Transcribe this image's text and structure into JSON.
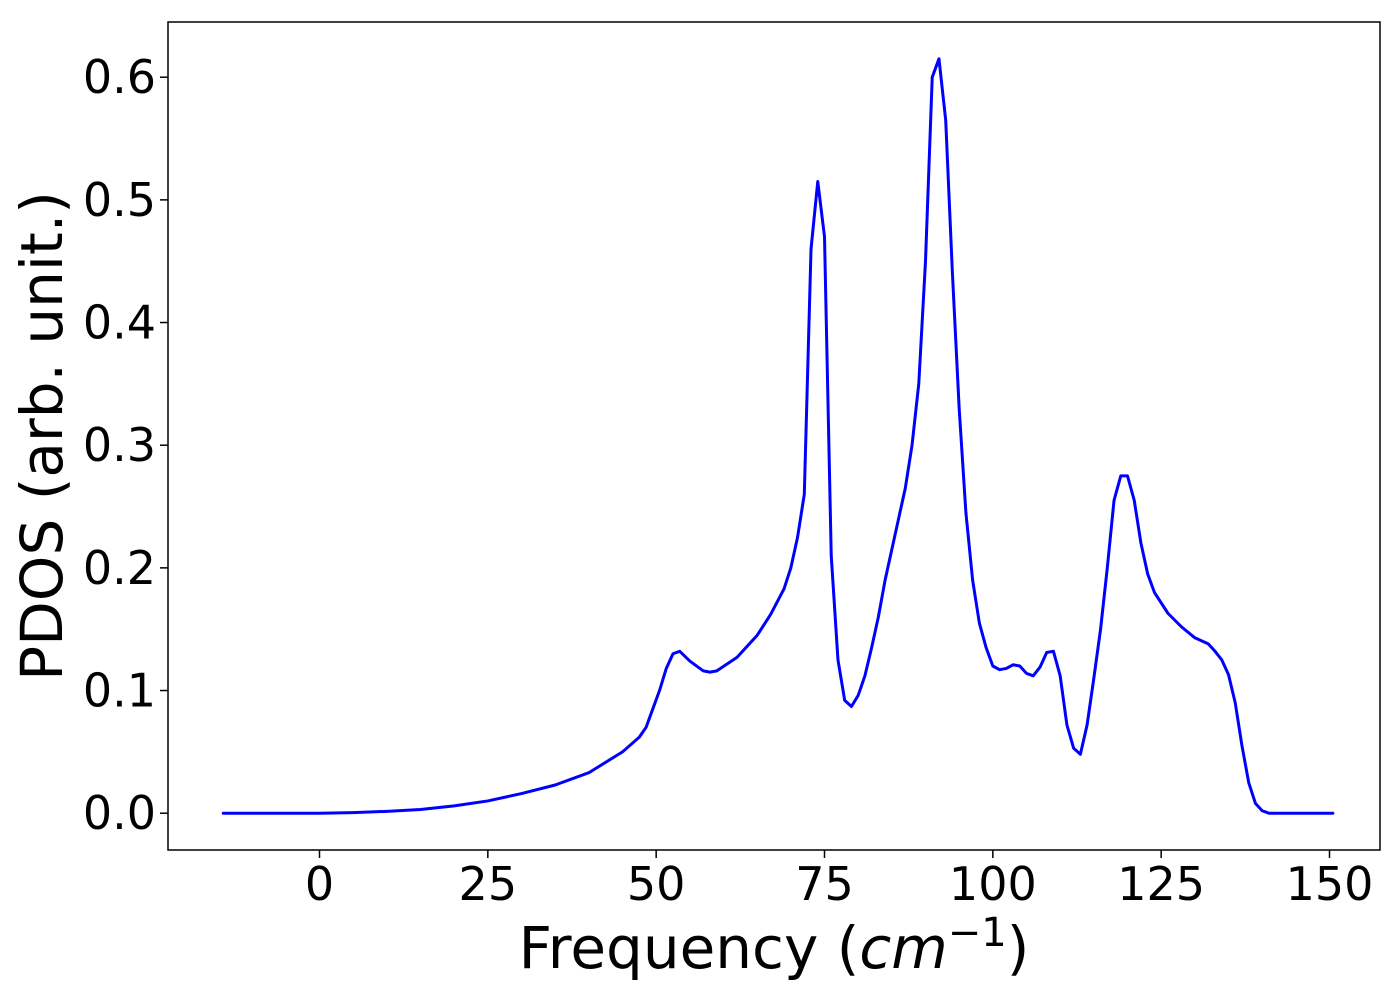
{
  "chart_data": {
    "type": "line",
    "title": "",
    "xlabel": "Frequency (",
    "xlabel_math": "cm",
    "xlabel_exp": "−1",
    "xlabel_close": ")",
    "ylabel": "PDOS (arb. unit.)",
    "xlim": [
      -22.5,
      157.5
    ],
    "ylim": [
      -0.03,
      0.645
    ],
    "xticks": [
      0,
      25,
      50,
      75,
      100,
      125,
      150
    ],
    "yticks": [
      0.0,
      0.1,
      0.2,
      0.3,
      0.4,
      0.5,
      0.6
    ],
    "ytick_labels": [
      "0.0",
      "0.1",
      "0.2",
      "0.3",
      "0.4",
      "0.5",
      "0.6"
    ],
    "grid": false,
    "line_color": "#0000ff",
    "series": [
      {
        "x": [
          -14.3,
          0,
          5,
          10,
          15,
          20,
          25,
          30,
          35,
          40,
          45,
          47.5,
          48.5,
          49.5,
          50.5,
          51.5,
          52.5,
          53.5,
          55,
          57,
          58,
          59,
          62,
          65,
          67,
          69,
          70,
          71,
          72,
          73,
          74,
          75,
          76,
          77,
          78,
          79,
          80,
          81,
          82,
          83,
          84,
          85,
          86,
          87,
          88,
          89,
          90,
          91,
          92,
          93,
          94,
          95,
          96,
          97,
          98,
          99,
          100,
          101,
          102,
          103,
          104,
          105,
          106,
          107,
          108,
          109,
          110,
          111,
          112,
          113,
          114,
          115,
          116,
          117,
          118,
          119,
          120,
          121,
          122,
          123,
          124,
          126,
          128,
          130,
          132,
          133,
          134,
          135,
          136,
          137,
          138,
          139,
          140,
          141,
          145,
          150.5
        ],
        "y": [
          0.0,
          0.0,
          0.0005,
          0.0015,
          0.003,
          0.006,
          0.01,
          0.016,
          0.023,
          0.033,
          0.05,
          0.062,
          0.07,
          0.085,
          0.1,
          0.118,
          0.13,
          0.132,
          0.124,
          0.116,
          0.115,
          0.116,
          0.127,
          0.145,
          0.162,
          0.183,
          0.2,
          0.225,
          0.26,
          0.46,
          0.515,
          0.47,
          0.21,
          0.125,
          0.092,
          0.087,
          0.096,
          0.112,
          0.135,
          0.16,
          0.19,
          0.215,
          0.24,
          0.265,
          0.3,
          0.35,
          0.45,
          0.6,
          0.615,
          0.565,
          0.44,
          0.33,
          0.245,
          0.19,
          0.155,
          0.135,
          0.12,
          0.117,
          0.118,
          0.121,
          0.12,
          0.114,
          0.112,
          0.119,
          0.131,
          0.132,
          0.112,
          0.072,
          0.053,
          0.048,
          0.072,
          0.11,
          0.15,
          0.2,
          0.255,
          0.275,
          0.275,
          0.255,
          0.22,
          0.195,
          0.18,
          0.163,
          0.152,
          0.143,
          0.138,
          0.132,
          0.125,
          0.113,
          0.09,
          0.055,
          0.025,
          0.008,
          0.002,
          0.0,
          0.0,
          0.0
        ]
      }
    ]
  }
}
